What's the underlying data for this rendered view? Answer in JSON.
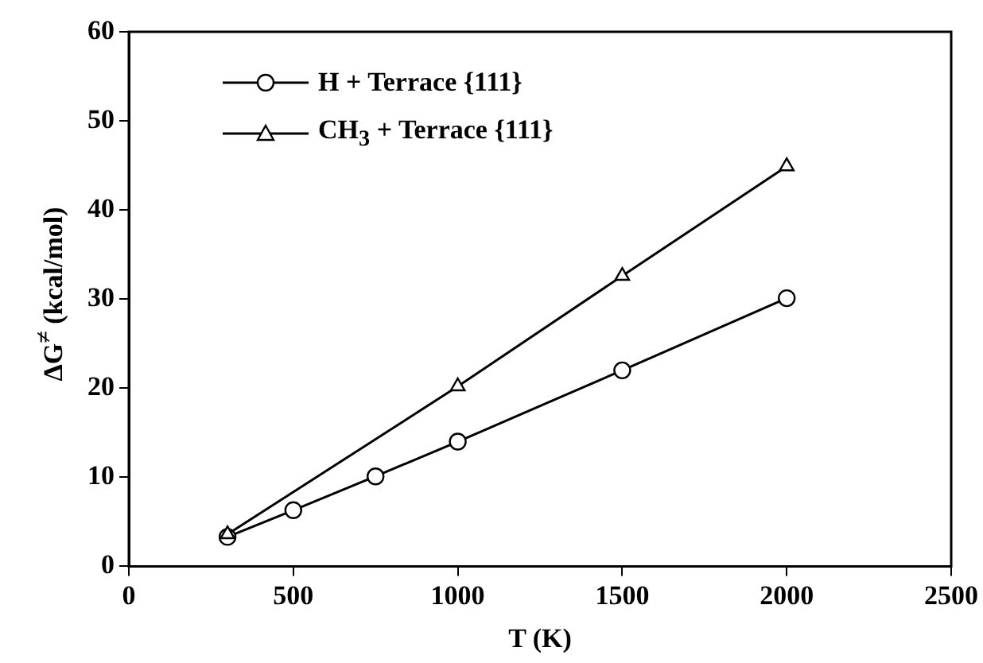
{
  "chart_data": {
    "type": "line",
    "xlabel": "T (K)",
    "ylabel": "ΔG$^{≠}$ (kcal/mol)",
    "xlim": [
      0,
      2500
    ],
    "xticks": [
      0,
      500,
      1000,
      1500,
      2000,
      2500
    ],
    "ylim": [
      0,
      60
    ],
    "yticks": [
      0,
      10,
      20,
      30,
      40,
      50,
      60
    ],
    "grid": false,
    "legend": "top left",
    "line_style": "solid",
    "series": [
      {
        "name": "H + Terrace {111}",
        "color": "#000000",
        "marker": "circle",
        "x": [
          300,
          500,
          750,
          1000,
          1500,
          2000
        ],
        "values": [
          3.3,
          6.3,
          10.1,
          14.0,
          22.0,
          30.1
        ]
      },
      {
        "name": "CH$_{3}$ + Terrace {111}",
        "color": "#000000",
        "marker": "triangle",
        "x": [
          300,
          1000,
          1500,
          2000
        ],
        "values": [
          3.6,
          20.2,
          32.6,
          44.9
        ]
      }
    ]
  }
}
